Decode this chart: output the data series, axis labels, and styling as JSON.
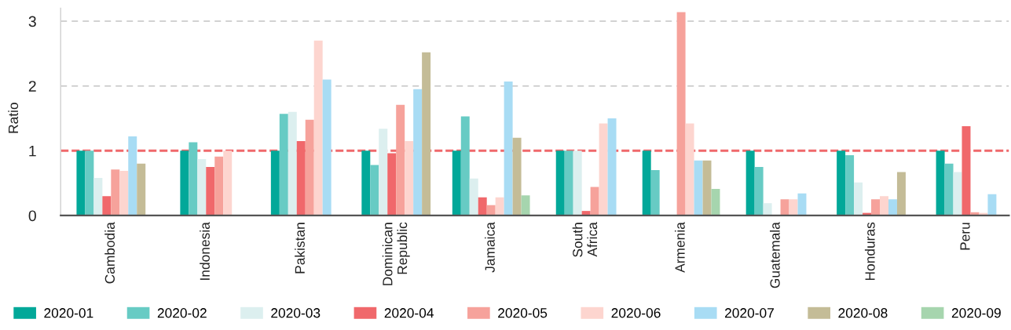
{
  "chart_data": {
    "type": "bar",
    "ylabel": "Ratio",
    "categories": [
      "Cambodia",
      "Indonesia",
      "Pakistan",
      "Dominican\nRepublic",
      "Jamaica",
      "South\nAfrica",
      "Armenia",
      "Guatemala",
      "Honduras",
      "Peru"
    ],
    "series": [
      {
        "name": "2020-01",
        "color": "#02a899",
        "values": [
          1.0,
          1.0,
          1.0,
          1.0,
          1.0,
          1.0,
          1.0,
          1.0,
          1.0,
          1.0
        ]
      },
      {
        "name": "2020-02",
        "color": "#67cbc4",
        "values": [
          1.0,
          1.13,
          1.57,
          0.78,
          1.53,
          1.0,
          0.7,
          0.75,
          0.93,
          0.8
        ]
      },
      {
        "name": "2020-03",
        "color": "#dcefef",
        "values": [
          0.58,
          0.87,
          1.6,
          1.34,
          0.57,
          1.0,
          null,
          0.19,
          0.51,
          0.67
        ]
      },
      {
        "name": "2020-04",
        "color": "#f0686b",
        "values": [
          0.3,
          0.75,
          1.15,
          0.96,
          0.28,
          0.07,
          null,
          null,
          0.04,
          1.38
        ]
      },
      {
        "name": "2020-05",
        "color": "#f6a29b",
        "values": [
          0.71,
          0.91,
          1.48,
          1.71,
          0.16,
          0.44,
          3.14,
          0.25,
          0.25,
          0.05
        ]
      },
      {
        "name": "2020-06",
        "color": "#fdd5cf",
        "values": [
          0.69,
          1.0,
          2.7,
          1.15,
          0.28,
          1.42,
          1.42,
          0.25,
          0.3,
          0.04
        ]
      },
      {
        "name": "2020-07",
        "color": "#a8dcf4",
        "values": [
          1.22,
          null,
          2.1,
          1.95,
          2.07,
          1.5,
          0.85,
          0.34,
          0.25,
          0.33
        ]
      },
      {
        "name": "2020-08",
        "color": "#c4bc97",
        "values": [
          0.8,
          null,
          null,
          2.52,
          1.2,
          null,
          0.85,
          null,
          0.67,
          null
        ]
      },
      {
        "name": "2020-09",
        "color": "#a6d5ae",
        "values": [
          null,
          null,
          null,
          null,
          0.31,
          null,
          0.41,
          null,
          null,
          null
        ]
      }
    ],
    "ylim": [
      0,
      3.2
    ],
    "yticks": [
      0,
      1,
      2,
      3
    ],
    "grid": "y",
    "legend": "bottom",
    "ref_lines": [
      {
        "axis": "y",
        "value": 1,
        "color": "#f0686b",
        "line_style": "dashed"
      }
    ]
  }
}
